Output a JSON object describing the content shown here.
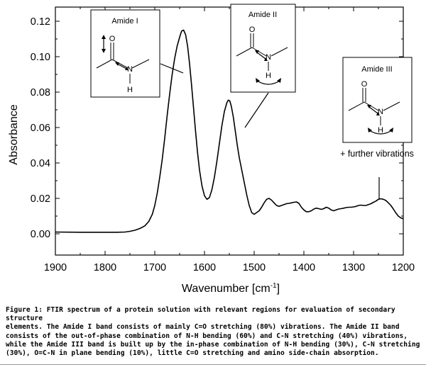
{
  "chart_data": {
    "type": "line",
    "xlabel": "Wavenumber [cm",
    "xlabel_sup": "-1",
    "xlabel_close": "]",
    "ylabel": "Absorbance",
    "xlim": [
      1900,
      1200
    ],
    "ylim": [
      -0.012,
      0.128
    ],
    "x_ticks": [
      1900,
      1800,
      1700,
      1600,
      1500,
      1400,
      1300,
      1200
    ],
    "y_ticks": [
      0.0,
      0.02,
      0.04,
      0.06,
      0.08,
      0.1,
      0.12
    ],
    "y_tick_labels": [
      "0.00",
      "0.02",
      "0.04",
      "0.06",
      "0.08",
      "0.10",
      "0.12"
    ],
    "grid": false,
    "series": [
      {
        "color": "#000000",
        "x": [
          1900,
          1850,
          1800,
          1775,
          1760,
          1750,
          1740,
          1730,
          1720,
          1712,
          1705,
          1700,
          1695,
          1690,
          1685,
          1680,
          1675,
          1670,
          1665,
          1660,
          1655,
          1650,
          1646,
          1642,
          1638,
          1634,
          1630,
          1626,
          1622,
          1618,
          1614,
          1610,
          1605,
          1600,
          1595,
          1590,
          1585,
          1580,
          1575,
          1570,
          1565,
          1560,
          1555,
          1552,
          1549,
          1546,
          1542,
          1538,
          1534,
          1530,
          1525,
          1520,
          1515,
          1510,
          1505,
          1500,
          1495,
          1490,
          1485,
          1480,
          1475,
          1470,
          1465,
          1460,
          1455,
          1450,
          1445,
          1440,
          1435,
          1430,
          1425,
          1420,
          1415,
          1410,
          1405,
          1400,
          1395,
          1390,
          1385,
          1380,
          1375,
          1370,
          1365,
          1360,
          1355,
          1350,
          1345,
          1340,
          1335,
          1330,
          1325,
          1320,
          1315,
          1310,
          1305,
          1300,
          1295,
          1290,
          1285,
          1280,
          1275,
          1270,
          1265,
          1260,
          1255,
          1250,
          1245,
          1240,
          1235,
          1230,
          1225,
          1220,
          1215,
          1210,
          1205,
          1200
        ],
        "y": [
          0.001,
          0.0009,
          0.0009,
          0.0009,
          0.001,
          0.0014,
          0.002,
          0.003,
          0.0045,
          0.007,
          0.011,
          0.016,
          0.023,
          0.032,
          0.042,
          0.054,
          0.067,
          0.079,
          0.09,
          0.099,
          0.106,
          0.111,
          0.1145,
          0.115,
          0.1125,
          0.106,
          0.096,
          0.084,
          0.071,
          0.058,
          0.046,
          0.036,
          0.027,
          0.0215,
          0.0195,
          0.0205,
          0.025,
          0.032,
          0.041,
          0.051,
          0.061,
          0.069,
          0.074,
          0.0755,
          0.075,
          0.072,
          0.066,
          0.058,
          0.05,
          0.043,
          0.036,
          0.029,
          0.022,
          0.016,
          0.012,
          0.011,
          0.012,
          0.013,
          0.015,
          0.0175,
          0.0195,
          0.02,
          0.019,
          0.0175,
          0.016,
          0.0155,
          0.016,
          0.0165,
          0.017,
          0.0172,
          0.0175,
          0.0178,
          0.018,
          0.0172,
          0.015,
          0.0135,
          0.0125,
          0.0125,
          0.013,
          0.014,
          0.0145,
          0.0142,
          0.0138,
          0.0142,
          0.015,
          0.0145,
          0.0135,
          0.013,
          0.0135,
          0.014,
          0.0142,
          0.0145,
          0.0148,
          0.015,
          0.015,
          0.0152,
          0.0155,
          0.016,
          0.0162,
          0.016,
          0.016,
          0.0165,
          0.017,
          0.0178,
          0.0185,
          0.0195,
          0.0198,
          0.0195,
          0.0188,
          0.0175,
          0.016,
          0.014,
          0.0118,
          0.01,
          0.009,
          0.0085
        ]
      }
    ],
    "annotations": [
      {
        "label": "Amide I"
      },
      {
        "label": "Amide II"
      },
      {
        "label": "Amide III",
        "note": "+ further vibrations"
      }
    ]
  },
  "molecule": {
    "oxygen": "O",
    "nitrogen": "N",
    "hydrogen": "H"
  },
  "caption": {
    "title": "Figure 1: FTIR spectrum of a protein solution with relevant regions for evaluation of secondary structure",
    "lines": [
      "elements. The Amide I band consists of mainly C=O stretching (80%) vibrations. The Amide II band",
      "consists of the out-of-phase combination of N-H bending (60%) and C-N stretching (40%) vibrations,",
      "while the Amide III band is built up by the in-phase combination of N-H bending (30%), C-N stretching",
      "(30%), O=C-N in plane bending (10%), little C=O stretching and amino side-chain absorption."
    ]
  }
}
